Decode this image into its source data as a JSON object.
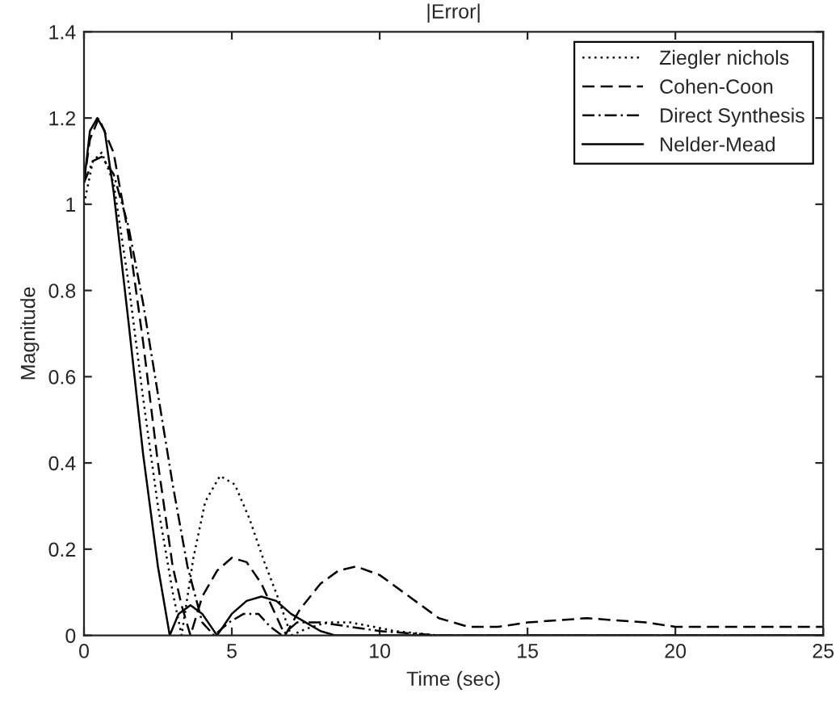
{
  "chart_data": {
    "type": "line",
    "title": "|Error|",
    "xlabel": "Time (sec)",
    "ylabel": "Magnitude",
    "xlim": [
      0,
      25
    ],
    "ylim": [
      0,
      1.4
    ],
    "xticks": [
      0,
      5,
      10,
      15,
      20,
      25
    ],
    "yticks": [
      0,
      0.2,
      0.4,
      0.6,
      0.8,
      1,
      1.2,
      1.4
    ],
    "grid": false,
    "legend": "top right",
    "series": [
      {
        "name": "Ziegler nichols",
        "color": "#000000",
        "line_style": "dotted",
        "x": [
          0,
          0.3,
          0.6,
          1,
          1.5,
          2,
          2.5,
          3,
          3.3,
          3.7,
          4.1,
          4.6,
          5.1,
          5.6,
          6.1,
          6.6,
          7,
          7.5,
          8.2,
          9,
          9.8,
          10.5,
          12,
          15,
          20,
          25
        ],
        "values": [
          1.0,
          1.1,
          1.12,
          1.05,
          0.82,
          0.55,
          0.3,
          0.1,
          0.0,
          0.18,
          0.31,
          0.37,
          0.35,
          0.27,
          0.17,
          0.08,
          0.0,
          0.015,
          0.03,
          0.03,
          0.02,
          0.01,
          0.0,
          0.0,
          0.0,
          0.0
        ]
      },
      {
        "name": "Cohen-Coon",
        "color": "#000000",
        "line_style": "dashed",
        "x": [
          0,
          0.2,
          0.5,
          1,
          1.5,
          2,
          2.5,
          3,
          3.3,
          3.6,
          4,
          4.5,
          5,
          5.5,
          6,
          6.4,
          6.8,
          7.3,
          8,
          8.6,
          9.2,
          10,
          11,
          12,
          13,
          14,
          15,
          16,
          17,
          18,
          19,
          20,
          22,
          25
        ],
        "values": [
          1.05,
          1.15,
          1.2,
          1.12,
          0.93,
          0.68,
          0.4,
          0.16,
          0.07,
          0.0,
          0.09,
          0.15,
          0.18,
          0.17,
          0.12,
          0.06,
          0.0,
          0.06,
          0.12,
          0.15,
          0.16,
          0.14,
          0.09,
          0.04,
          0.02,
          0.02,
          0.03,
          0.035,
          0.04,
          0.035,
          0.03,
          0.02,
          0.02,
          0.02
        ]
      },
      {
        "name": "Direct Synthesis",
        "color": "#000000",
        "line_style": "dashdot",
        "x": [
          0,
          0.3,
          0.6,
          1,
          1.5,
          2,
          2.5,
          3,
          3.5,
          4,
          4.4,
          4.9,
          5.4,
          5.9,
          6.3,
          6.7,
          7.2,
          8,
          9,
          10,
          11,
          12,
          15,
          20,
          25
        ],
        "values": [
          1.05,
          1.1,
          1.11,
          1.07,
          0.95,
          0.77,
          0.56,
          0.35,
          0.16,
          0.03,
          0.0,
          0.03,
          0.05,
          0.05,
          0.02,
          0.0,
          0.03,
          0.03,
          0.02,
          0.01,
          0.005,
          0.0,
          0.0,
          0.0,
          0.0
        ]
      },
      {
        "name": "Nelder-Mead",
        "color": "#000000",
        "line_style": "solid",
        "x": [
          0,
          0.2,
          0.45,
          0.7,
          1,
          1.5,
          2,
          2.5,
          2.9,
          3.2,
          3.6,
          4.0,
          4.5,
          5.0,
          5.5,
          6.0,
          6.5,
          7.0,
          7.5,
          8,
          8.5,
          10,
          15,
          20,
          25
        ],
        "values": [
          1.05,
          1.17,
          1.2,
          1.17,
          1.03,
          0.73,
          0.42,
          0.16,
          0.0,
          0.05,
          0.07,
          0.05,
          0.0,
          0.05,
          0.08,
          0.09,
          0.08,
          0.05,
          0.03,
          0.01,
          0.0,
          0.0,
          0.0,
          0.0,
          0.0
        ]
      }
    ]
  }
}
